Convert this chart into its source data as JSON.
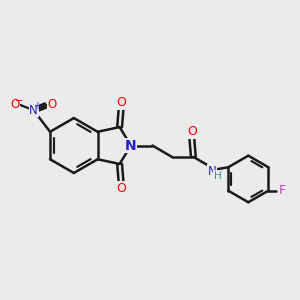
{
  "bg_color": "#ebebeb",
  "bond_color": "#1a1a1a",
  "bond_width": 1.8,
  "figsize": [
    3.0,
    3.0
  ],
  "dpi": 100,
  "xlim": [
    0,
    10
  ],
  "ylim": [
    0,
    10
  ]
}
